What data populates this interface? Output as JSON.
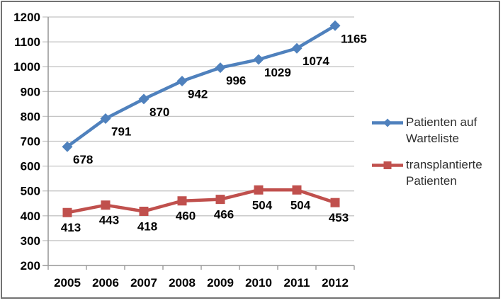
{
  "chart_data": {
    "type": "line",
    "title": "",
    "categories": [
      "2005",
      "2006",
      "2007",
      "2008",
      "2009",
      "2010",
      "2011",
      "2012"
    ],
    "series": [
      {
        "name": "Patienten auf Warteliste",
        "legend_lines": [
          "Patienten auf",
          "Warteliste"
        ],
        "color": "#4F81BD",
        "marker": "diamond",
        "values": [
          678,
          791,
          870,
          942,
          996,
          1029,
          1074,
          1165
        ]
      },
      {
        "name": "transplantierte Patienten",
        "legend_lines": [
          "transplantierte",
          "Patienten"
        ],
        "color": "#C0504D",
        "marker": "square",
        "values": [
          413,
          443,
          418,
          460,
          466,
          504,
          504,
          453
        ]
      }
    ],
    "xlabel": "",
    "ylabel": "",
    "ylim": [
      200,
      1200
    ],
    "ytick_step": 100,
    "ytick_labels": [
      "200",
      "300",
      "400",
      "500",
      "600",
      "700",
      "800",
      "900",
      "1000",
      "1100",
      "1200"
    ],
    "grid": true,
    "data_labels": true,
    "legend_position": "right",
    "styles": {
      "gridline_color": "#C4C4C4",
      "axis_color": "#9B9B9B",
      "tick_label_color": "#000000",
      "data_label_color": "#000000",
      "legend_text_color": "#2E2E2E",
      "background": "#FFFFFF",
      "frame_border_color": "#737373"
    }
  }
}
